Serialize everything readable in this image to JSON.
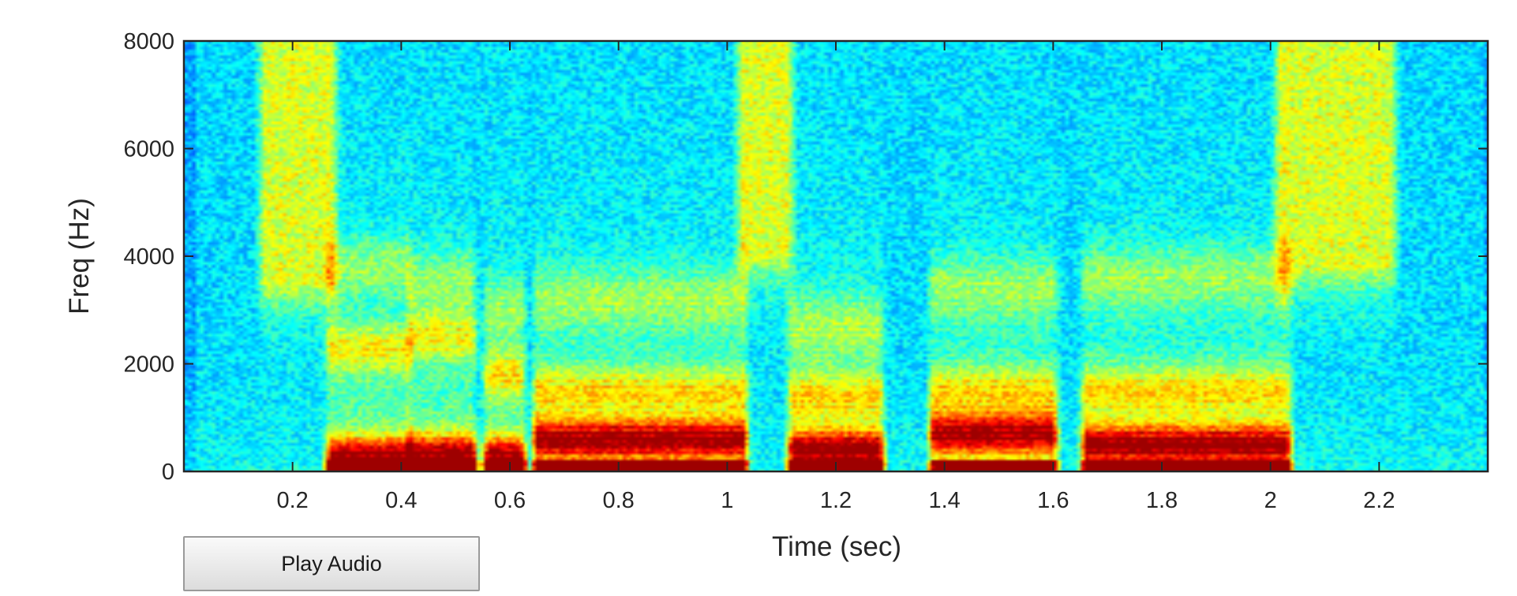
{
  "chart_data": {
    "type": "heatmap",
    "title": "",
    "xlabel": "Time (sec)",
    "ylabel": "Freq (Hz)",
    "xlim": [
      0,
      2.4
    ],
    "ylim": [
      0,
      8000
    ],
    "xticks": [
      0.2,
      0.4,
      0.6,
      0.8,
      1,
      1.2,
      1.4,
      1.6,
      1.8,
      2,
      2.2
    ],
    "xtick_labels": [
      "0.2",
      "0.4",
      "0.6",
      "0.8",
      "1",
      "1.2",
      "1.4",
      "1.6",
      "1.8",
      "2",
      "2.2"
    ],
    "yticks": [
      0,
      2000,
      4000,
      6000,
      8000
    ],
    "ytick_labels": [
      "0",
      "2000",
      "4000",
      "6000",
      "8000"
    ],
    "colormap": "jet",
    "grid": false,
    "legend": "none",
    "voiced_segments": [
      {
        "start": 0.27,
        "end": 0.41,
        "f1": 250,
        "f2": 2300,
        "f3": 3800
      },
      {
        "start": 0.42,
        "end": 0.53,
        "f1": 300,
        "f2": 2500,
        "f3": 3500
      },
      {
        "start": 0.56,
        "end": 0.62,
        "f1": 250,
        "f2": 1800,
        "f3": 3000
      },
      {
        "start": 0.65,
        "end": 1.03,
        "f1": 600,
        "f2": 1500,
        "f3": 3200
      },
      {
        "start": 1.12,
        "end": 1.28,
        "f1": 400,
        "f2": 1400,
        "f3": 2700
      },
      {
        "start": 1.38,
        "end": 1.6,
        "f1": 700,
        "f2": 1500,
        "f3": 3400
      },
      {
        "start": 1.66,
        "end": 2.03,
        "f1": 500,
        "f2": 1500,
        "f3": 3600
      }
    ],
    "fricative_segments": [
      {
        "start": 0.15,
        "end": 0.27,
        "low_hz": 3500,
        "high_hz": 8000
      },
      {
        "start": 1.03,
        "end": 1.11,
        "low_hz": 4000,
        "high_hz": 8000
      },
      {
        "start": 2.02,
        "end": 2.22,
        "low_hz": 3800,
        "high_hz": 8000
      }
    ]
  },
  "controls": {
    "play_label": "Play Audio"
  },
  "colors": {
    "axis": "#262626",
    "background": "#ffffff",
    "colormap_low": "#00008f",
    "colormap_high": "#800000"
  }
}
